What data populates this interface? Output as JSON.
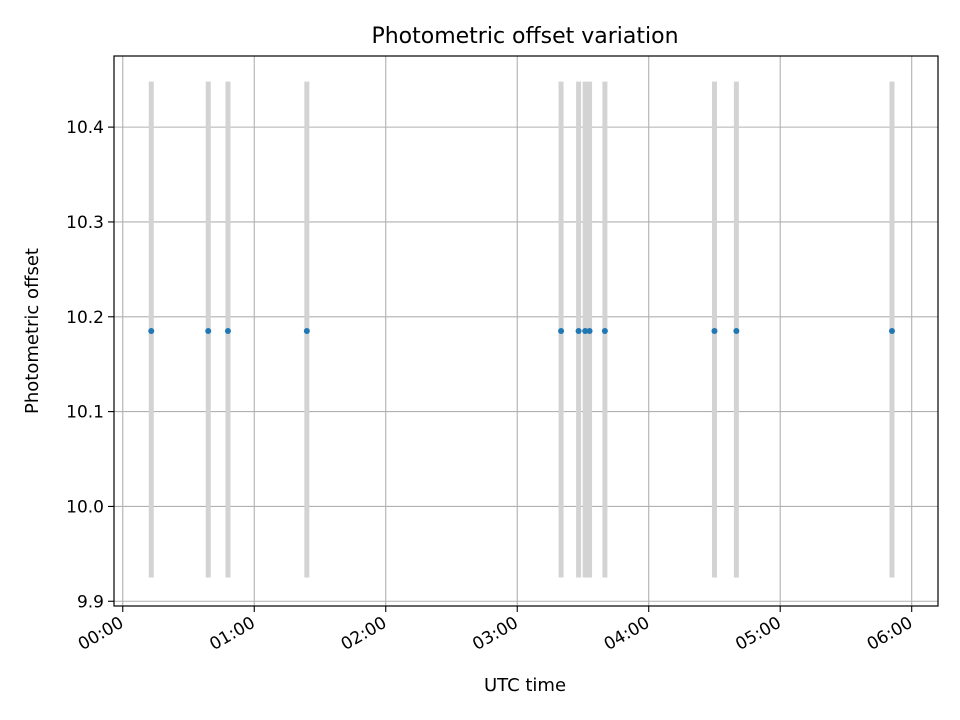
{
  "chart_data": {
    "type": "scatter",
    "title": "Photometric offset variation",
    "xlabel": "UTC time",
    "ylabel": "Photometric offset",
    "x_unit": "UTC time (HH:MM)",
    "x_ticks": [
      "00:00",
      "01:00",
      "02:00",
      "03:00",
      "04:00",
      "05:00",
      "06:00"
    ],
    "y_ticks": [
      "9.9",
      "10.0",
      "10.1",
      "10.2",
      "10.3",
      "10.4"
    ],
    "xlim": [
      "-00:04",
      "06:12"
    ],
    "ylim": [
      9.895,
      10.475
    ],
    "grid": true,
    "legend": "none",
    "points": [
      {
        "x": "00:13",
        "y": 10.185,
        "yerr_low": 9.925,
        "yerr_high": 10.448
      },
      {
        "x": "00:39",
        "y": 10.185,
        "yerr_low": 9.925,
        "yerr_high": 10.448
      },
      {
        "x": "00:48",
        "y": 10.185,
        "yerr_low": 9.925,
        "yerr_high": 10.448
      },
      {
        "x": "01:24",
        "y": 10.185,
        "yerr_low": 9.925,
        "yerr_high": 10.448
      },
      {
        "x": "03:20",
        "y": 10.185,
        "yerr_low": 9.925,
        "yerr_high": 10.448
      },
      {
        "x": "03:28",
        "y": 10.185,
        "yerr_low": 9.925,
        "yerr_high": 10.448
      },
      {
        "x": "03:31",
        "y": 10.185,
        "yerr_low": 9.925,
        "yerr_high": 10.448
      },
      {
        "x": "03:33",
        "y": 10.185,
        "yerr_low": 9.925,
        "yerr_high": 10.448
      },
      {
        "x": "03:40",
        "y": 10.185,
        "yerr_low": 9.925,
        "yerr_high": 10.448
      },
      {
        "x": "04:30",
        "y": 10.185,
        "yerr_low": 9.925,
        "yerr_high": 10.448
      },
      {
        "x": "04:40",
        "y": 10.185,
        "yerr_low": 9.925,
        "yerr_high": 10.448
      },
      {
        "x": "05:51",
        "y": 10.185,
        "yerr_low": 9.925,
        "yerr_high": 10.448
      }
    ],
    "colors": {
      "marker": "#1f77b4",
      "errorbar": "#d3d3d3",
      "grid": "#b0b0b0",
      "axis": "#000000"
    }
  }
}
